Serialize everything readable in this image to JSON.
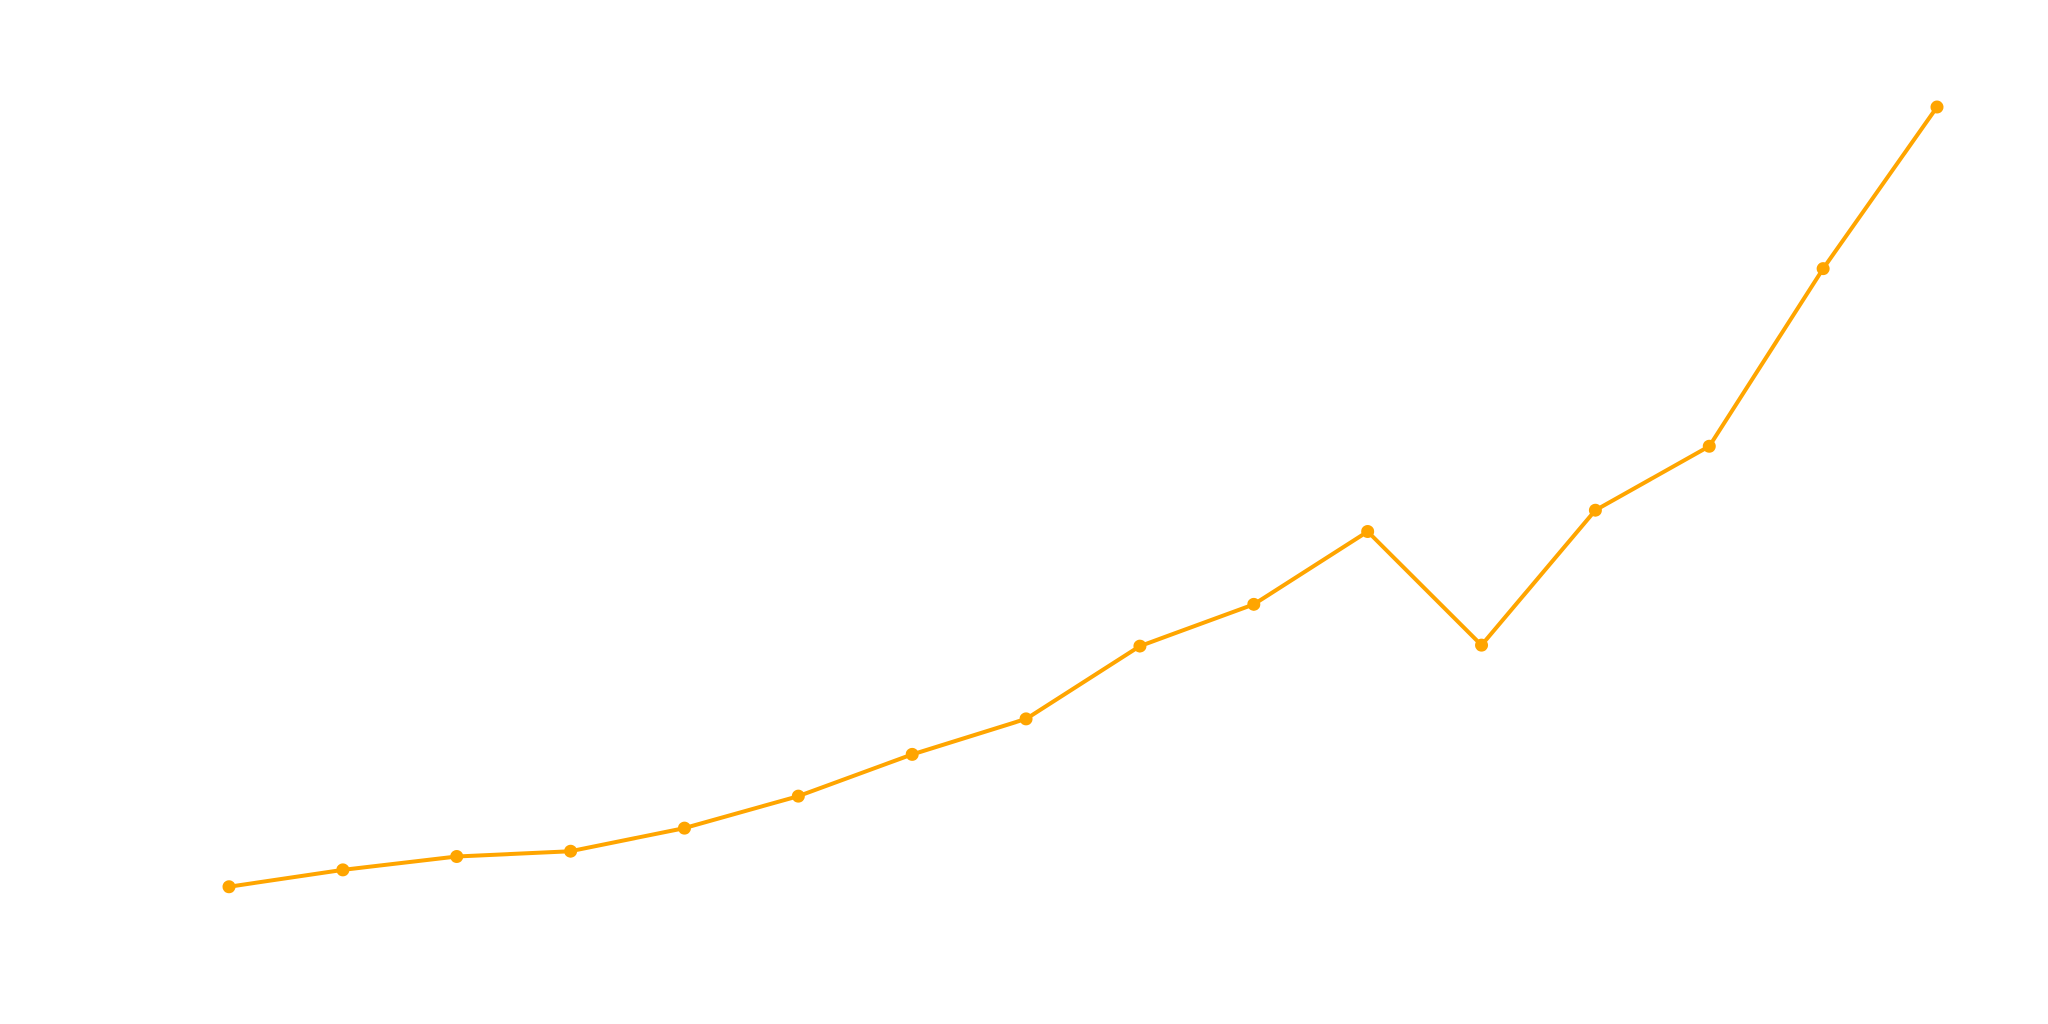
{
  "chart_data": {
    "type": "line",
    "categories": [
      null,
      null,
      null,
      null,
      null,
      null,
      null,
      null,
      null,
      null,
      null,
      null,
      null,
      null,
      null,
      null
    ],
    "values": [
      6.0,
      7.9,
      9.4,
      10.0,
      12.6,
      16.2,
      20.9,
      24.9,
      33.1,
      37.8,
      46.0,
      33.2,
      48.4,
      55.6,
      75.6,
      93.8
    ],
    "color": "#ffa500",
    "ylim": [
      0,
      100
    ]
  }
}
